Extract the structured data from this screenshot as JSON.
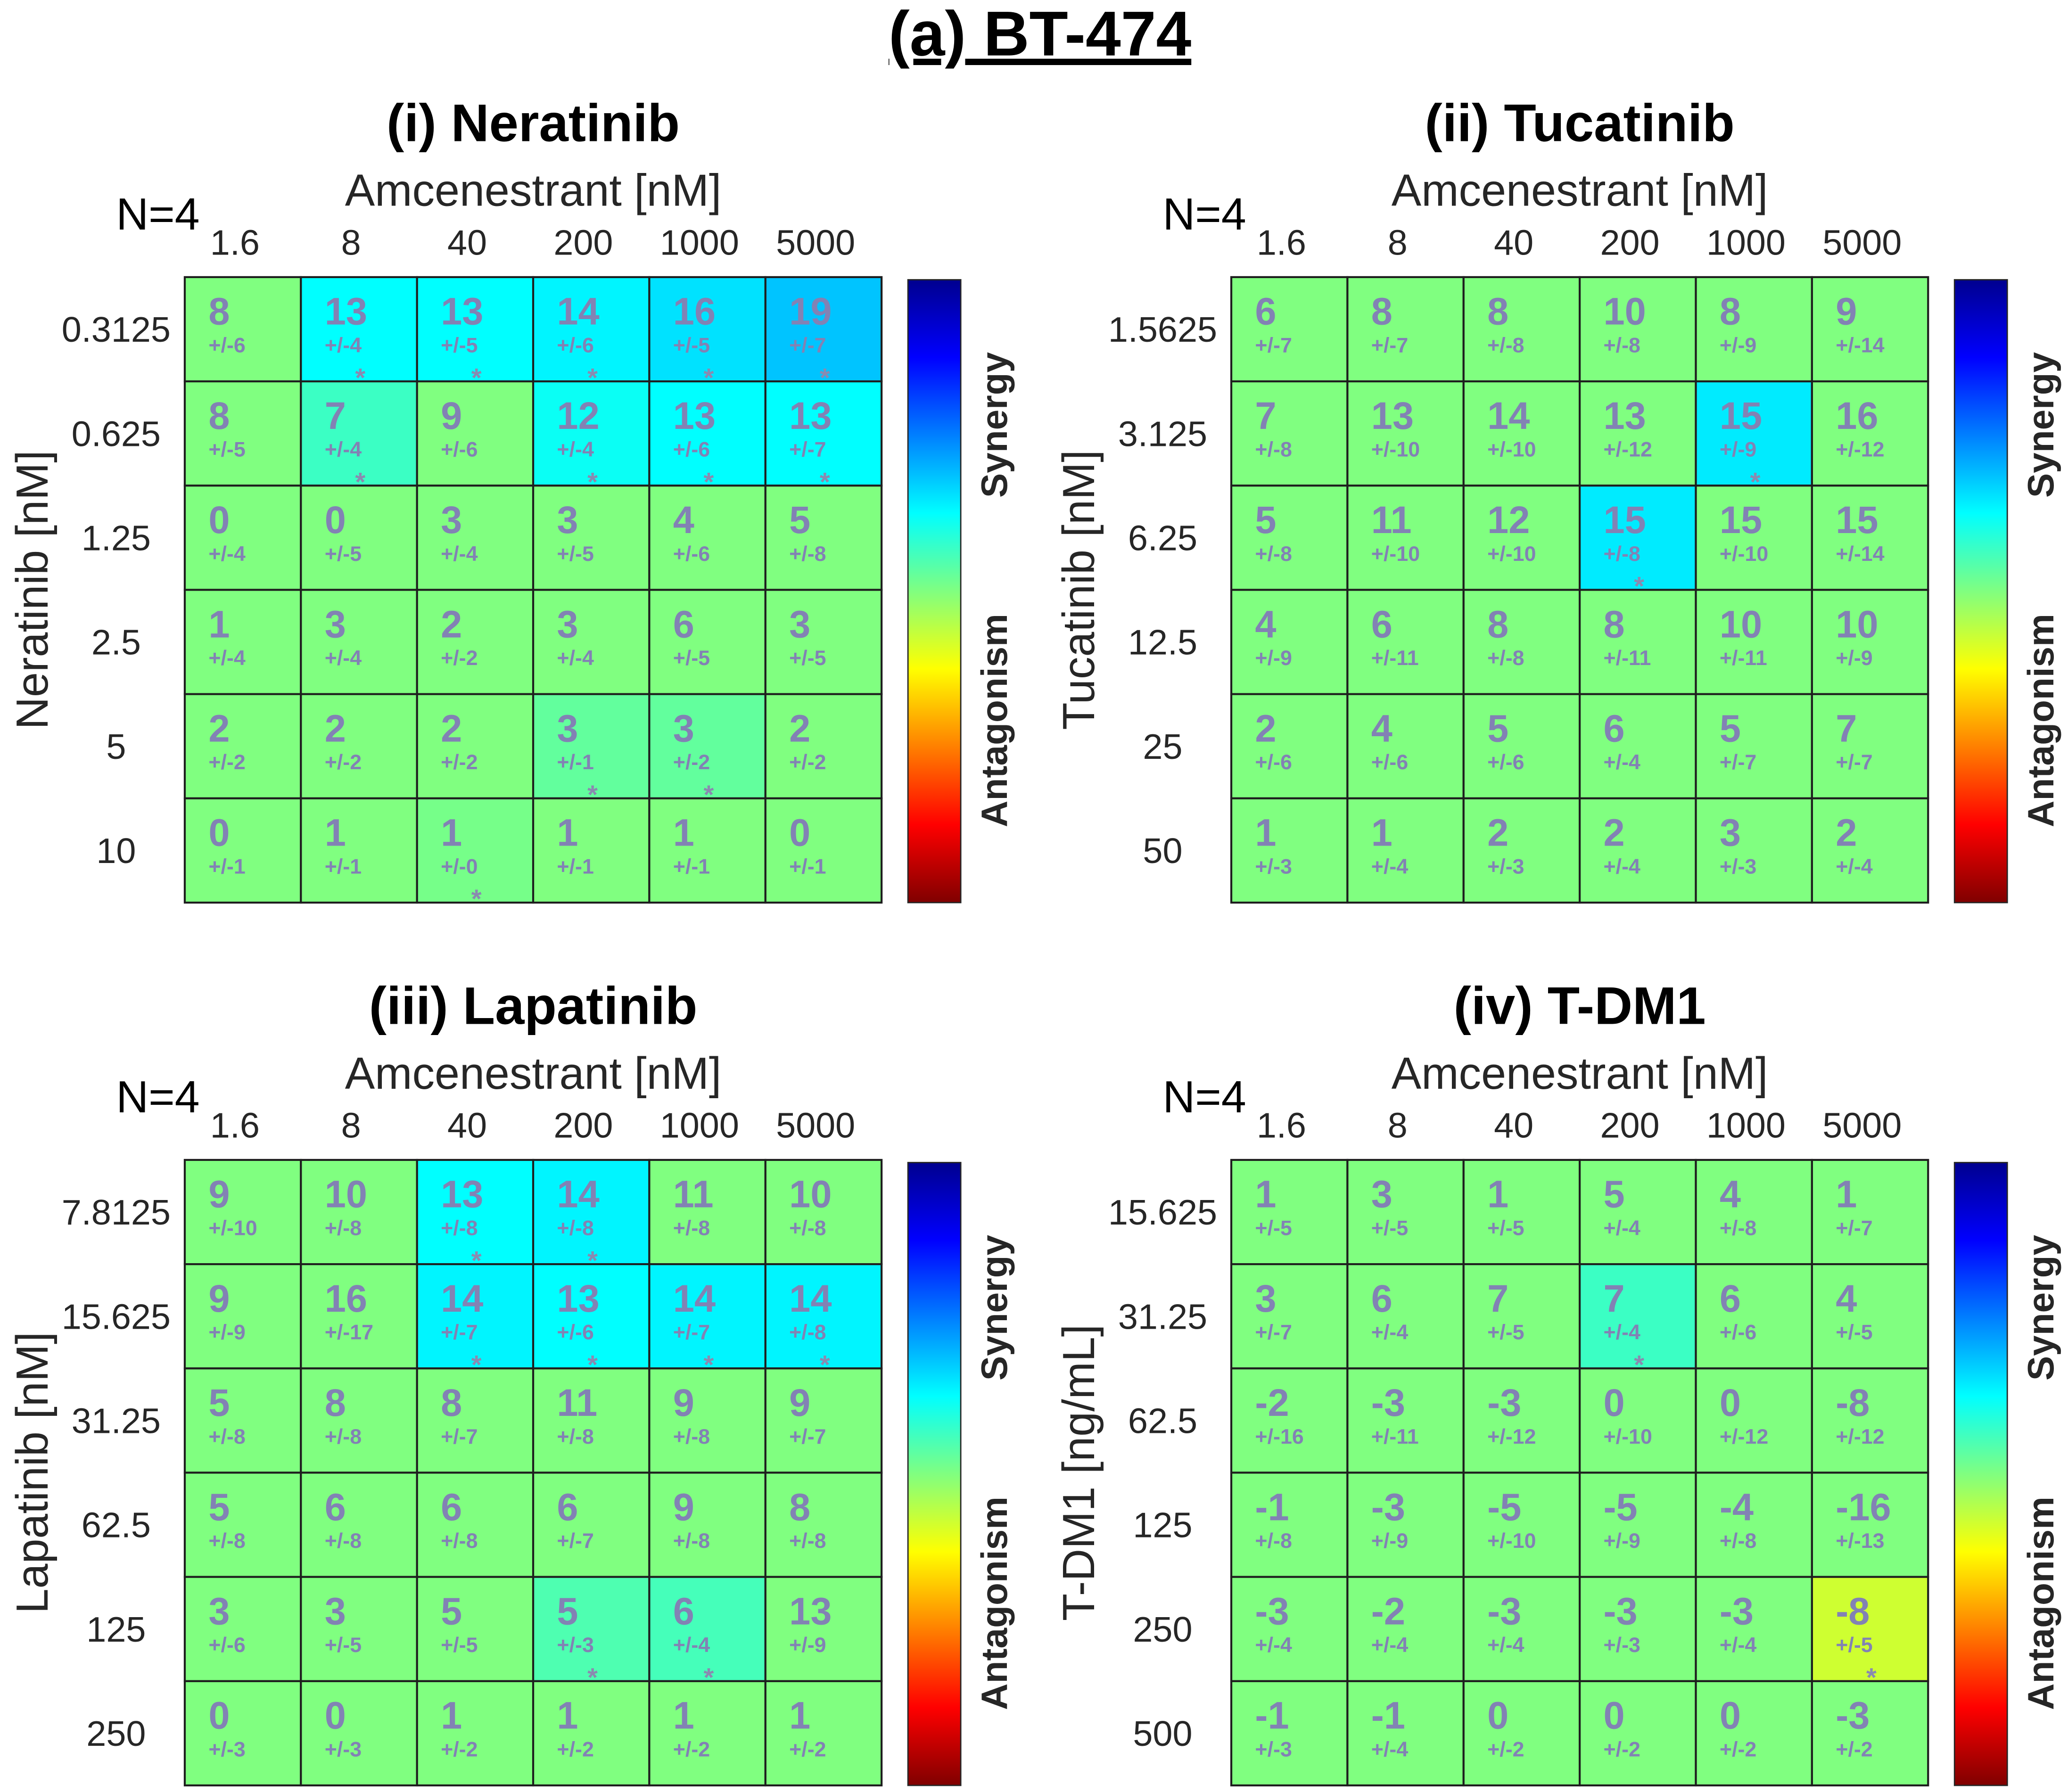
{
  "figure": {
    "title": "(a) BT-474"
  },
  "annotation": {
    "sd_prefix": "+/-",
    "significance_marker": "*"
  },
  "colors": {
    "cell_text": "#8282b4",
    "significance_marker": "#8a8ab0",
    "nonsignificant_cell": "#80ff80",
    "grid_line": "#1e1e1e",
    "colormap": [
      "#00008f",
      "#0000ff",
      "#00ffff",
      "#80ff80",
      "#ffff00",
      "#ff0000",
      "#800000"
    ]
  },
  "chart_data": [
    {
      "type": "heatmap",
      "title": "(i) Neratinib",
      "n_label": "N=4",
      "xlabel": "Amcenestrant [nM]",
      "ylabel": "Neratinib [nM]",
      "x": [
        1.6,
        8,
        40,
        200,
        1000,
        5000
      ],
      "y": [
        0.3125,
        0.625,
        1.25,
        2.5,
        5,
        10
      ],
      "values": [
        [
          8,
          13,
          13,
          14,
          16,
          19
        ],
        [
          8,
          7,
          9,
          12,
          13,
          13
        ],
        [
          0,
          0,
          3,
          3,
          4,
          5
        ],
        [
          1,
          3,
          2,
          3,
          6,
          3
        ],
        [
          2,
          2,
          2,
          3,
          3,
          2
        ],
        [
          0,
          1,
          1,
          1,
          1,
          0
        ]
      ],
      "sd": [
        [
          6,
          4,
          5,
          6,
          5,
          7
        ],
        [
          5,
          4,
          6,
          4,
          6,
          7
        ],
        [
          4,
          5,
          4,
          5,
          6,
          8
        ],
        [
          4,
          4,
          2,
          4,
          5,
          5
        ],
        [
          2,
          2,
          2,
          1,
          2,
          2
        ],
        [
          1,
          1,
          0,
          1,
          1,
          1
        ]
      ],
      "significant": [
        [
          0,
          1,
          1,
          1,
          1,
          1
        ],
        [
          0,
          1,
          0,
          1,
          1,
          1
        ],
        [
          0,
          0,
          0,
          0,
          0,
          0
        ],
        [
          0,
          0,
          0,
          0,
          0,
          0
        ],
        [
          0,
          0,
          0,
          1,
          1,
          0
        ],
        [
          0,
          0,
          1,
          0,
          0,
          0
        ]
      ],
      "colorbar": {
        "top_label": "Synergy",
        "bottom_label": "Antagonism"
      }
    },
    {
      "type": "heatmap",
      "title": "(ii) Tucatinib",
      "n_label": "N=4",
      "xlabel": "Amcenestrant [nM]",
      "ylabel": "Tucatinib [nM]",
      "x": [
        1.6,
        8,
        40,
        200,
        1000,
        5000
      ],
      "y": [
        1.5625,
        3.125,
        6.25,
        12.5,
        25,
        50
      ],
      "values": [
        [
          6,
          8,
          8,
          10,
          8,
          9
        ],
        [
          7,
          13,
          14,
          13,
          15,
          16
        ],
        [
          5,
          11,
          12,
          15,
          15,
          15
        ],
        [
          4,
          6,
          8,
          8,
          10,
          10
        ],
        [
          2,
          4,
          5,
          6,
          5,
          7
        ],
        [
          1,
          1,
          2,
          2,
          3,
          2
        ]
      ],
      "sd": [
        [
          7,
          7,
          8,
          8,
          9,
          14
        ],
        [
          8,
          10,
          10,
          12,
          9,
          12
        ],
        [
          8,
          10,
          10,
          8,
          10,
          14
        ],
        [
          9,
          11,
          8,
          11,
          11,
          9
        ],
        [
          6,
          6,
          6,
          4,
          7,
          7
        ],
        [
          3,
          4,
          3,
          4,
          3,
          4
        ]
      ],
      "significant": [
        [
          0,
          0,
          0,
          0,
          0,
          0
        ],
        [
          0,
          0,
          0,
          0,
          1,
          0
        ],
        [
          0,
          0,
          0,
          1,
          0,
          0
        ],
        [
          0,
          0,
          0,
          0,
          0,
          0
        ],
        [
          0,
          0,
          0,
          0,
          0,
          0
        ],
        [
          0,
          0,
          0,
          0,
          0,
          0
        ]
      ],
      "colorbar": {
        "top_label": "Synergy",
        "bottom_label": "Antagonism"
      }
    },
    {
      "type": "heatmap",
      "title": "(iii) Lapatinib",
      "n_label": "N=4",
      "xlabel": "Amcenestrant [nM]",
      "ylabel": "Lapatinib [nM]",
      "x": [
        1.6,
        8,
        40,
        200,
        1000,
        5000
      ],
      "y": [
        7.8125,
        15.625,
        31.25,
        62.5,
        125,
        250
      ],
      "values": [
        [
          9,
          10,
          13,
          14,
          11,
          10
        ],
        [
          9,
          16,
          14,
          13,
          14,
          14
        ],
        [
          5,
          8,
          8,
          11,
          9,
          9
        ],
        [
          5,
          6,
          6,
          6,
          9,
          8
        ],
        [
          3,
          3,
          5,
          5,
          6,
          13
        ],
        [
          0,
          0,
          1,
          1,
          1,
          1
        ]
      ],
      "sd": [
        [
          10,
          8,
          8,
          8,
          8,
          8
        ],
        [
          9,
          17,
          7,
          6,
          7,
          8
        ],
        [
          8,
          8,
          7,
          8,
          8,
          7
        ],
        [
          8,
          8,
          8,
          7,
          8,
          8
        ],
        [
          6,
          5,
          5,
          3,
          4,
          9
        ],
        [
          3,
          3,
          2,
          2,
          2,
          2
        ]
      ],
      "significant": [
        [
          0,
          0,
          1,
          1,
          0,
          0
        ],
        [
          0,
          0,
          1,
          1,
          1,
          1
        ],
        [
          0,
          0,
          0,
          0,
          0,
          0
        ],
        [
          0,
          0,
          0,
          0,
          0,
          0
        ],
        [
          0,
          0,
          0,
          1,
          1,
          0
        ],
        [
          0,
          0,
          0,
          0,
          0,
          0
        ]
      ],
      "colorbar": {
        "top_label": "Synergy",
        "bottom_label": "Antagonism"
      }
    },
    {
      "type": "heatmap",
      "title": "(iv) T-DM1",
      "n_label": "N=4",
      "xlabel": "Amcenestrant [nM]",
      "ylabel": "T-DM1 [ng/mL]",
      "x": [
        1.6,
        8,
        40,
        200,
        1000,
        5000
      ],
      "y": [
        15.625,
        31.25,
        62.5,
        125,
        250,
        500
      ],
      "values": [
        [
          1,
          3,
          1,
          5,
          4,
          1
        ],
        [
          3,
          6,
          7,
          7,
          6,
          4
        ],
        [
          -2,
          -3,
          -3,
          0,
          0,
          -8
        ],
        [
          -1,
          -3,
          -5,
          -5,
          -4,
          -16
        ],
        [
          -3,
          -2,
          -3,
          -3,
          -3,
          -8
        ],
        [
          -1,
          -1,
          0,
          0,
          0,
          -3
        ]
      ],
      "sd": [
        [
          5,
          5,
          5,
          4,
          8,
          7
        ],
        [
          7,
          4,
          5,
          4,
          6,
          5
        ],
        [
          16,
          11,
          12,
          10,
          12,
          12
        ],
        [
          8,
          9,
          10,
          9,
          8,
          13
        ],
        [
          4,
          4,
          4,
          3,
          4,
          5
        ],
        [
          3,
          4,
          2,
          2,
          2,
          2
        ]
      ],
      "significant": [
        [
          0,
          0,
          0,
          0,
          0,
          0
        ],
        [
          0,
          0,
          0,
          1,
          0,
          0
        ],
        [
          0,
          0,
          0,
          0,
          0,
          0
        ],
        [
          0,
          0,
          0,
          0,
          0,
          0
        ],
        [
          0,
          0,
          0,
          0,
          0,
          1
        ],
        [
          0,
          0,
          0,
          0,
          0,
          0
        ]
      ],
      "colorbar": {
        "top_label": "Synergy",
        "bottom_label": "Antagonism"
      }
    }
  ]
}
